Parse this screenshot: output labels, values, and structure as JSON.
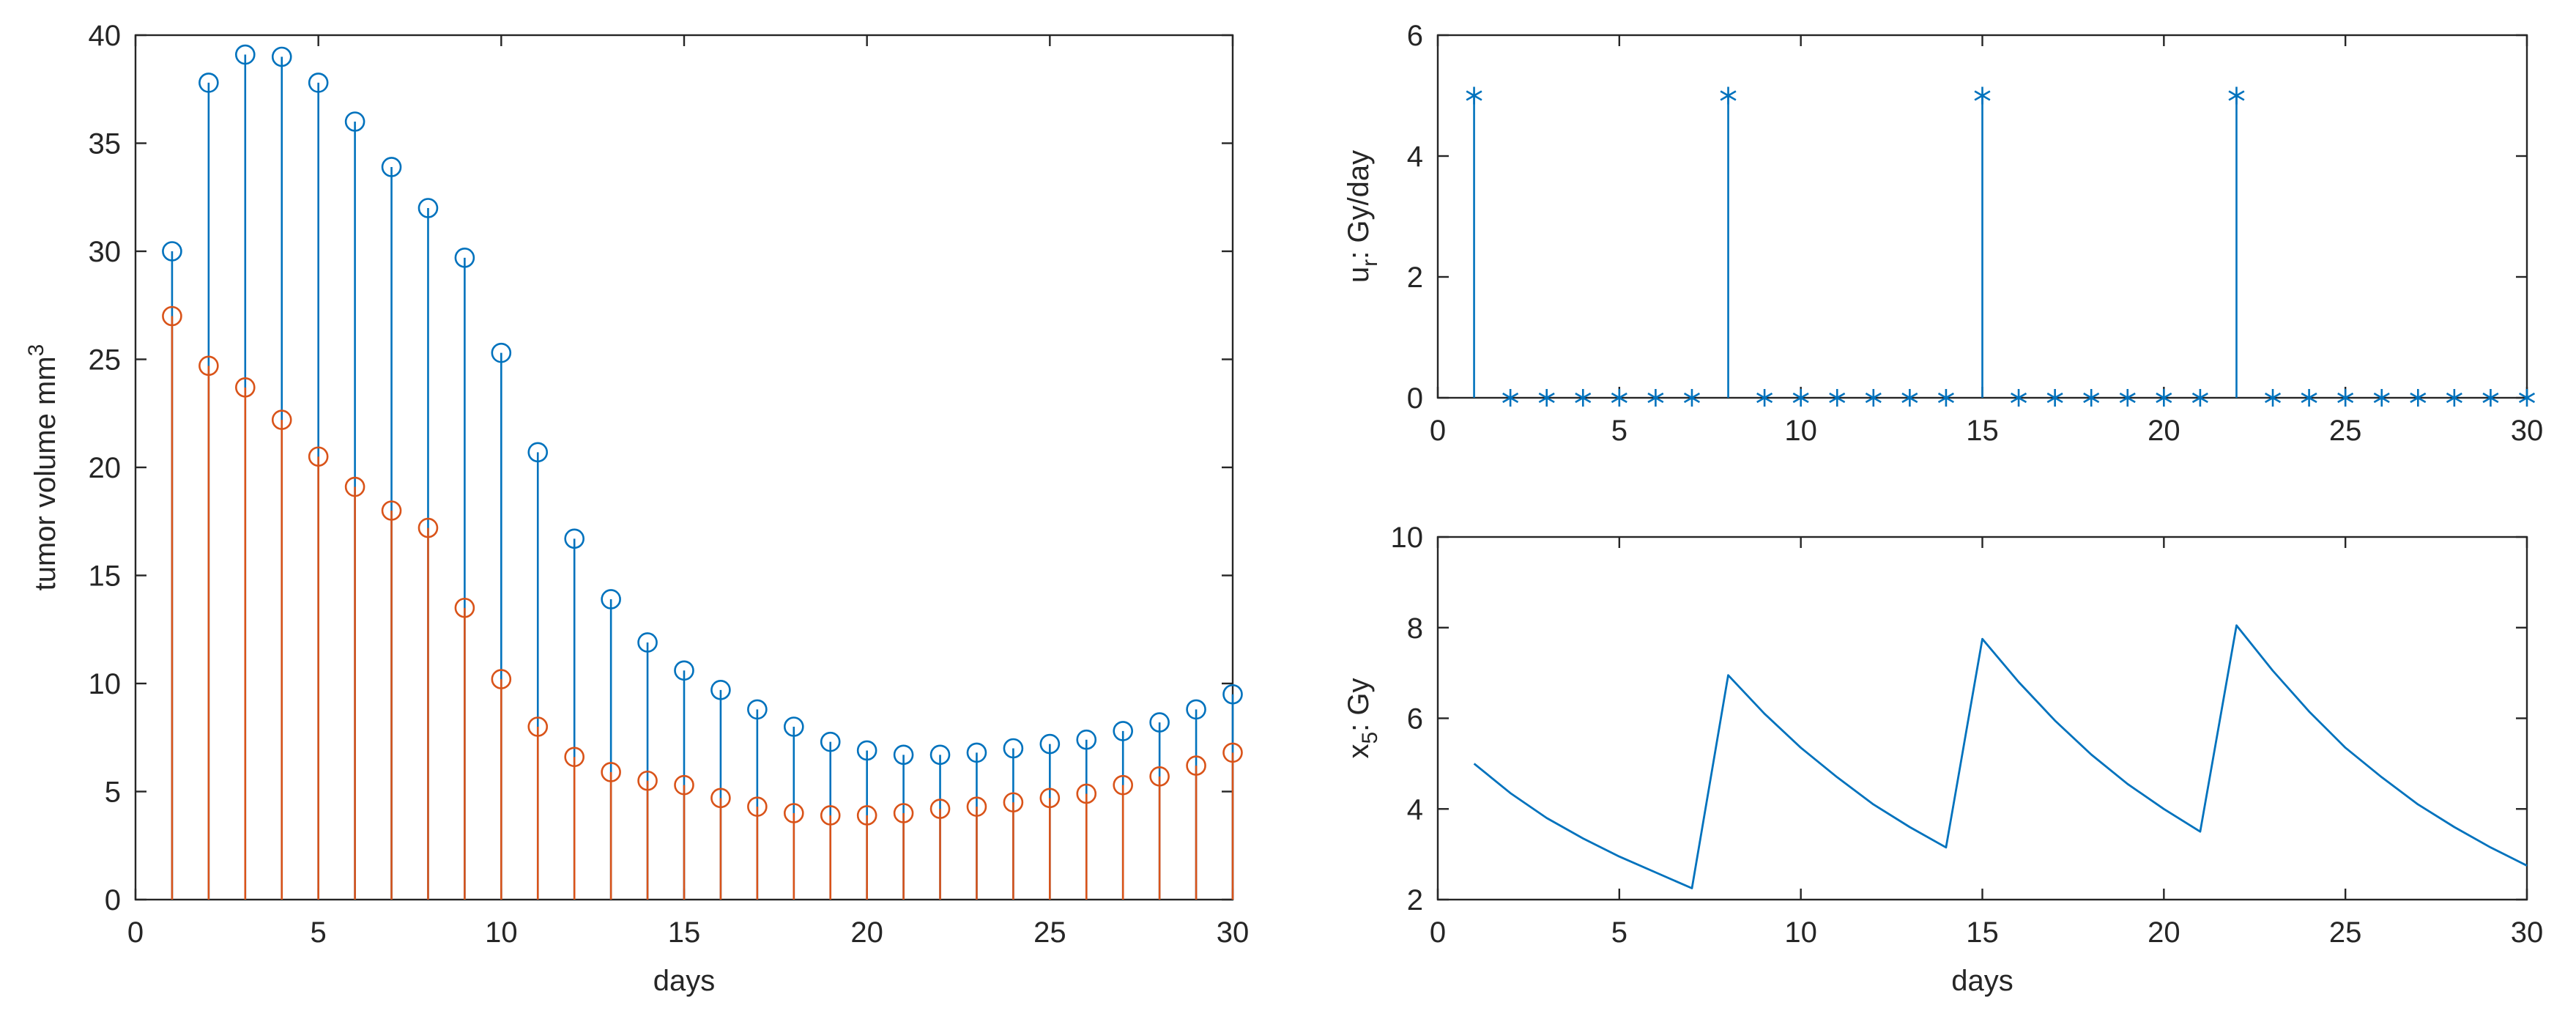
{
  "colors": {
    "series_blue": "#0072BD",
    "series_orange": "#D95319",
    "axis": "#262626",
    "background": "#ffffff"
  },
  "chart_data": [
    {
      "id": "tumor",
      "type": "stem",
      "xlabel": "days",
      "ylabel": "tumor volume mm",
      "ylabel_superscript": "3",
      "xlim": [
        0,
        30
      ],
      "ylim": [
        0,
        40
      ],
      "xticks": [
        0,
        5,
        10,
        15,
        20,
        25,
        30
      ],
      "yticks": [
        0,
        5,
        10,
        15,
        20,
        25,
        30,
        35,
        40
      ],
      "grid": false,
      "series": [
        {
          "name": "series1",
          "marker": "circle",
          "color": "#0072BD",
          "x": [
            1,
            2,
            3,
            4,
            5,
            6,
            7,
            8,
            9,
            10,
            11,
            12,
            13,
            14,
            15,
            16,
            17,
            18,
            19,
            20,
            21,
            22,
            23,
            24,
            25,
            26,
            27,
            28,
            29,
            30
          ],
          "values": [
            30.0,
            37.8,
            39.1,
            39.0,
            37.8,
            36.0,
            33.9,
            32.0,
            29.7,
            25.3,
            20.7,
            16.7,
            13.9,
            11.9,
            10.6,
            9.7,
            8.8,
            8.0,
            7.3,
            6.9,
            6.7,
            6.7,
            6.8,
            7.0,
            7.2,
            7.4,
            7.8,
            8.2,
            8.8,
            9.5
          ]
        },
        {
          "name": "series2",
          "marker": "circle",
          "color": "#D95319",
          "x": [
            1,
            2,
            3,
            4,
            5,
            6,
            7,
            8,
            9,
            10,
            11,
            12,
            13,
            14,
            15,
            16,
            17,
            18,
            19,
            20,
            21,
            22,
            23,
            24,
            25,
            26,
            27,
            28,
            29,
            30
          ],
          "values": [
            27.0,
            24.7,
            23.7,
            22.2,
            20.5,
            19.1,
            18.0,
            17.2,
            13.5,
            10.2,
            8.0,
            6.6,
            5.9,
            5.5,
            5.3,
            4.7,
            4.3,
            4.0,
            3.9,
            3.9,
            4.0,
            4.2,
            4.3,
            4.5,
            4.7,
            4.9,
            5.3,
            5.7,
            6.2,
            6.8
          ]
        }
      ]
    },
    {
      "id": "dose",
      "type": "stem",
      "xlabel": "",
      "ylabel_main": "u",
      "ylabel_subscript": "r",
      "ylabel_suffix": ": Gy/day",
      "xlim": [
        0,
        30
      ],
      "ylim": [
        0,
        6
      ],
      "xticks": [
        0,
        5,
        10,
        15,
        20,
        25,
        30
      ],
      "yticks": [
        0,
        2,
        4,
        6
      ],
      "grid": false,
      "series": [
        {
          "name": "dose",
          "marker": "asterisk",
          "color": "#0072BD",
          "x": [
            1,
            2,
            3,
            4,
            5,
            6,
            7,
            8,
            9,
            10,
            11,
            12,
            13,
            14,
            15,
            16,
            17,
            18,
            19,
            20,
            21,
            22,
            23,
            24,
            25,
            26,
            27,
            28,
            29,
            30
          ],
          "values": [
            5,
            0,
            0,
            0,
            0,
            0,
            0,
            5,
            0,
            0,
            0,
            0,
            0,
            0,
            5,
            0,
            0,
            0,
            0,
            0,
            0,
            5,
            0,
            0,
            0,
            0,
            0,
            0,
            0,
            0
          ]
        }
      ]
    },
    {
      "id": "x5",
      "type": "line",
      "xlabel": "days",
      "ylabel_main": "x",
      "ylabel_subscript": "5",
      "ylabel_suffix": ": Gy",
      "xlim": [
        0,
        30
      ],
      "ylim": [
        2,
        10
      ],
      "xticks": [
        0,
        5,
        10,
        15,
        20,
        25,
        30
      ],
      "yticks": [
        2,
        4,
        6,
        8,
        10
      ],
      "grid": false,
      "series": [
        {
          "name": "x5",
          "color": "#0072BD",
          "x": [
            1,
            2,
            3,
            4,
            5,
            6,
            7,
            8,
            9,
            10,
            11,
            12,
            13,
            14,
            15,
            16,
            17,
            18,
            19,
            20,
            21,
            22,
            23,
            24,
            25,
            26,
            27,
            28,
            29,
            30
          ],
          "values": [
            5.0,
            4.35,
            3.8,
            3.35,
            2.95,
            2.6,
            2.25,
            6.95,
            6.1,
            5.35,
            4.7,
            4.1,
            3.6,
            3.15,
            7.75,
            6.8,
            5.95,
            5.2,
            4.55,
            4.0,
            3.5,
            8.05,
            7.05,
            6.15,
            5.35,
            4.7,
            4.1,
            3.6,
            3.15,
            2.75
          ]
        }
      ]
    }
  ]
}
